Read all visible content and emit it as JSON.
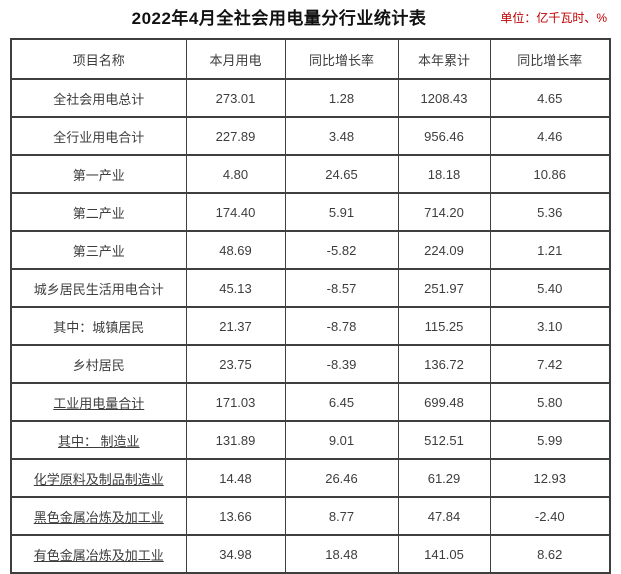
{
  "title": "2022年4月全社会用电量分行业统计表",
  "unit_label": "单位：亿千瓦时、%",
  "colors": {
    "unit_text": "#c00000",
    "border": "#3f3f3f",
    "text": "#3d3d3d"
  },
  "table": {
    "headers": [
      "项目名称",
      "本月用电",
      "同比增长率",
      "本年累计",
      "同比增长率"
    ],
    "rows": [
      {
        "label": "全社会用电总计",
        "values": [
          "273.01",
          "1.28",
          "1208.43",
          "4.65"
        ],
        "underlined": false
      },
      {
        "label": "全行业用电合计",
        "values": [
          "227.89",
          "3.48",
          "956.46",
          "4.46"
        ],
        "underlined": false
      },
      {
        "label": "第一产业",
        "values": [
          "4.80",
          "24.65",
          "18.18",
          "10.86"
        ],
        "underlined": false
      },
      {
        "label": "第二产业",
        "values": [
          "174.40",
          "5.91",
          "714.20",
          "5.36"
        ],
        "underlined": false
      },
      {
        "label": "第三产业",
        "values": [
          "48.69",
          "-5.82",
          "224.09",
          "1.21"
        ],
        "underlined": false
      },
      {
        "label": "城乡居民生活用电合计",
        "values": [
          "45.13",
          "-8.57",
          "251.97",
          "5.40"
        ],
        "underlined": false
      },
      {
        "label": "其中：城镇居民",
        "values": [
          "21.37",
          "-8.78",
          "115.25",
          "3.10"
        ],
        "underlined": false
      },
      {
        "label": "乡村居民",
        "values": [
          "23.75",
          "-8.39",
          "136.72",
          "7.42"
        ],
        "underlined": false
      },
      {
        "label": "工业用电量合计",
        "values": [
          "171.03",
          "6.45",
          "699.48",
          "5.80"
        ],
        "underlined": true
      },
      {
        "label": "其中： 制造业",
        "values": [
          "131.89",
          "9.01",
          "512.51",
          "5.99"
        ],
        "underlined": true
      },
      {
        "label": "化学原料及制品制造业",
        "values": [
          "14.48",
          "26.46",
          "61.29",
          "12.93"
        ],
        "underlined": true
      },
      {
        "label": "黑色金属冶炼及加工业",
        "values": [
          "13.66",
          "8.77",
          "47.84",
          "-2.40"
        ],
        "underlined": true
      },
      {
        "label": "有色金属冶炼及加工业",
        "values": [
          "34.98",
          "18.48",
          "141.05",
          "8.62"
        ],
        "underlined": true
      }
    ]
  }
}
